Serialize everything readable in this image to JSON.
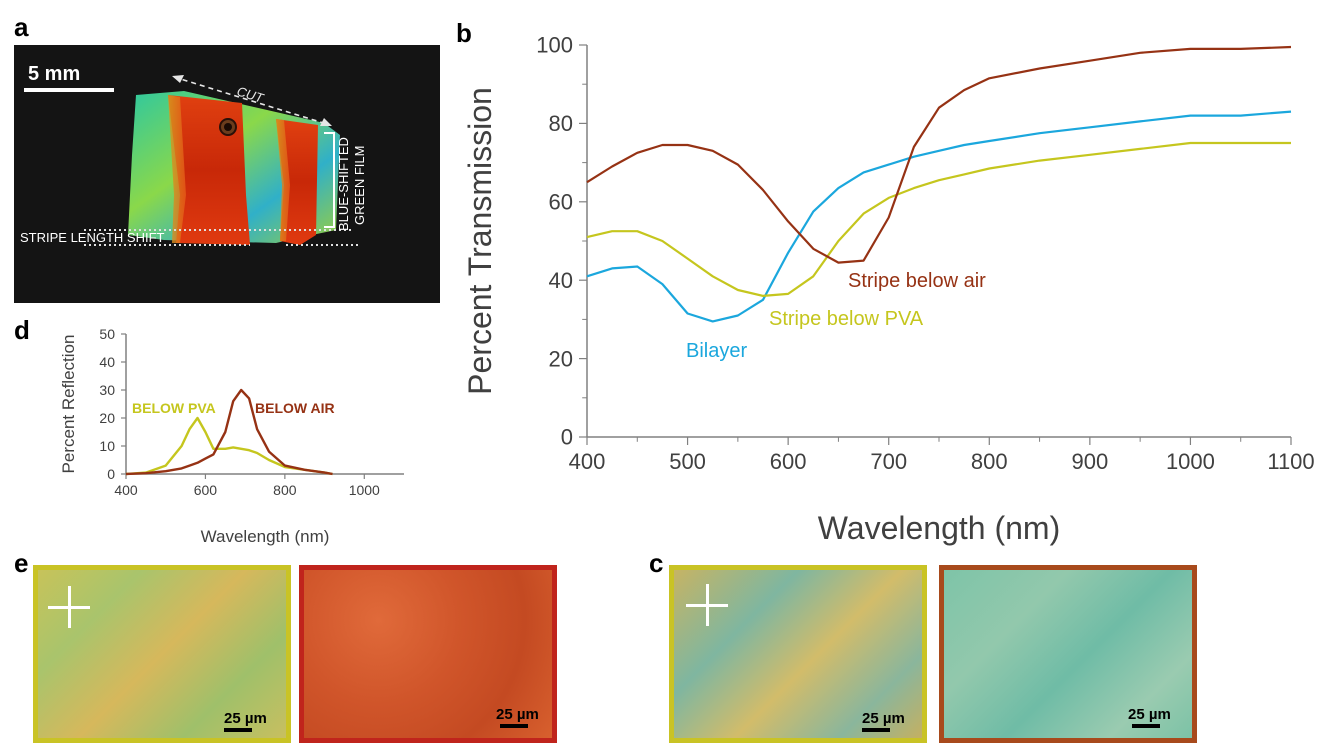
{
  "panels": {
    "a": {
      "letter": "a",
      "scale_label": "5 mm",
      "cut_label": "CUT",
      "stripe_label": "STRIPE LENGTH SHIFT",
      "film_label_line1": "BLUE-SHIFTED",
      "film_label_line2": "GREEN FILM"
    },
    "b": {
      "letter": "b"
    },
    "c": {
      "letter": "c",
      "scale_label_1": "25 µm",
      "scale_label_2": "25 µm"
    },
    "d": {
      "letter": "d"
    },
    "e": {
      "letter": "e",
      "scale_label_1": "25 µm",
      "scale_label_2": "25 µm"
    }
  },
  "colors": {
    "bilayer": "#1ba7dd",
    "stripe_below_pva": "#c5c61e",
    "stripe_below_air": "#963214"
  },
  "chart_data": [
    {
      "id": "b",
      "type": "line",
      "xlabel": "Wavelength (nm)",
      "ylabel": "Percent Transmission",
      "xlim": [
        400,
        1100
      ],
      "ylim": [
        0,
        100
      ],
      "x_ticks": [
        400,
        500,
        600,
        700,
        800,
        900,
        1000,
        1100
      ],
      "y_ticks": [
        0,
        20,
        40,
        60,
        80,
        100
      ],
      "grid": false,
      "x": [
        400,
        425,
        450,
        475,
        500,
        525,
        550,
        575,
        600,
        625,
        650,
        675,
        700,
        725,
        750,
        775,
        800,
        850,
        900,
        950,
        1000,
        1050,
        1100
      ],
      "series": [
        {
          "name": "Bilayer",
          "color": "#1ba7dd",
          "values": [
            41,
            43,
            43.5,
            39,
            31.5,
            29.5,
            31,
            35,
            47,
            57.5,
            63.5,
            67.5,
            69.5,
            71.5,
            73,
            74.5,
            75.5,
            77.5,
            79,
            80.5,
            82,
            82,
            83
          ]
        },
        {
          "name": "Stripe below PVA",
          "color": "#c5c61e",
          "values": [
            51,
            52.5,
            52.5,
            50,
            45.5,
            41,
            37.5,
            36,
            36.5,
            41,
            50,
            57,
            61,
            63.5,
            65.5,
            67,
            68.5,
            70.5,
            72,
            73.5,
            75,
            75,
            75
          ]
        },
        {
          "name": "Stripe below air",
          "color": "#963214",
          "values": [
            65,
            69,
            72.5,
            74.5,
            74.5,
            73,
            69.5,
            63,
            55,
            48,
            44.5,
            45,
            56,
            74,
            84,
            88.5,
            91.5,
            94,
            96,
            98,
            99,
            99,
            99.5
          ]
        }
      ],
      "annotations": [
        {
          "text": "Bilayer",
          "series": "Bilayer"
        },
        {
          "text": "Stripe below PVA",
          "series": "Stripe below PVA"
        },
        {
          "text": "Stripe below air",
          "series": "Stripe below air"
        }
      ]
    },
    {
      "id": "d",
      "type": "line",
      "xlabel": "Wavelength (nm)",
      "ylabel": "Percent Reflection",
      "xlim": [
        400,
        1100
      ],
      "ylim": [
        0,
        50
      ],
      "x_ticks": [
        400,
        600,
        800,
        1000
      ],
      "y_ticks": [
        0,
        10,
        20,
        30,
        40,
        50
      ],
      "grid": false,
      "x": [
        400,
        450,
        500,
        540,
        560,
        580,
        600,
        620,
        650,
        670,
        690,
        710,
        730,
        760,
        800,
        850,
        900,
        920
      ],
      "series": [
        {
          "name": "BELOW PVA",
          "color": "#c5c61e",
          "values": [
            0,
            0.5,
            3,
            10,
            16,
            20,
            15,
            9,
            9,
            9.5,
            9,
            8.5,
            7.5,
            5,
            2.5,
            1.5,
            0.5,
            0
          ]
        },
        {
          "name": "BELOW AIR",
          "color": "#963214",
          "values": [
            0,
            0.3,
            1,
            2,
            3,
            4,
            5.5,
            7,
            15,
            26,
            30,
            27,
            16,
            8,
            3,
            1.5,
            0.5,
            0
          ]
        }
      ],
      "annotations": [
        {
          "text": "BELOW PVA",
          "series": "BELOW PVA"
        },
        {
          "text": "BELOW AIR",
          "series": "BELOW AIR"
        }
      ]
    }
  ]
}
